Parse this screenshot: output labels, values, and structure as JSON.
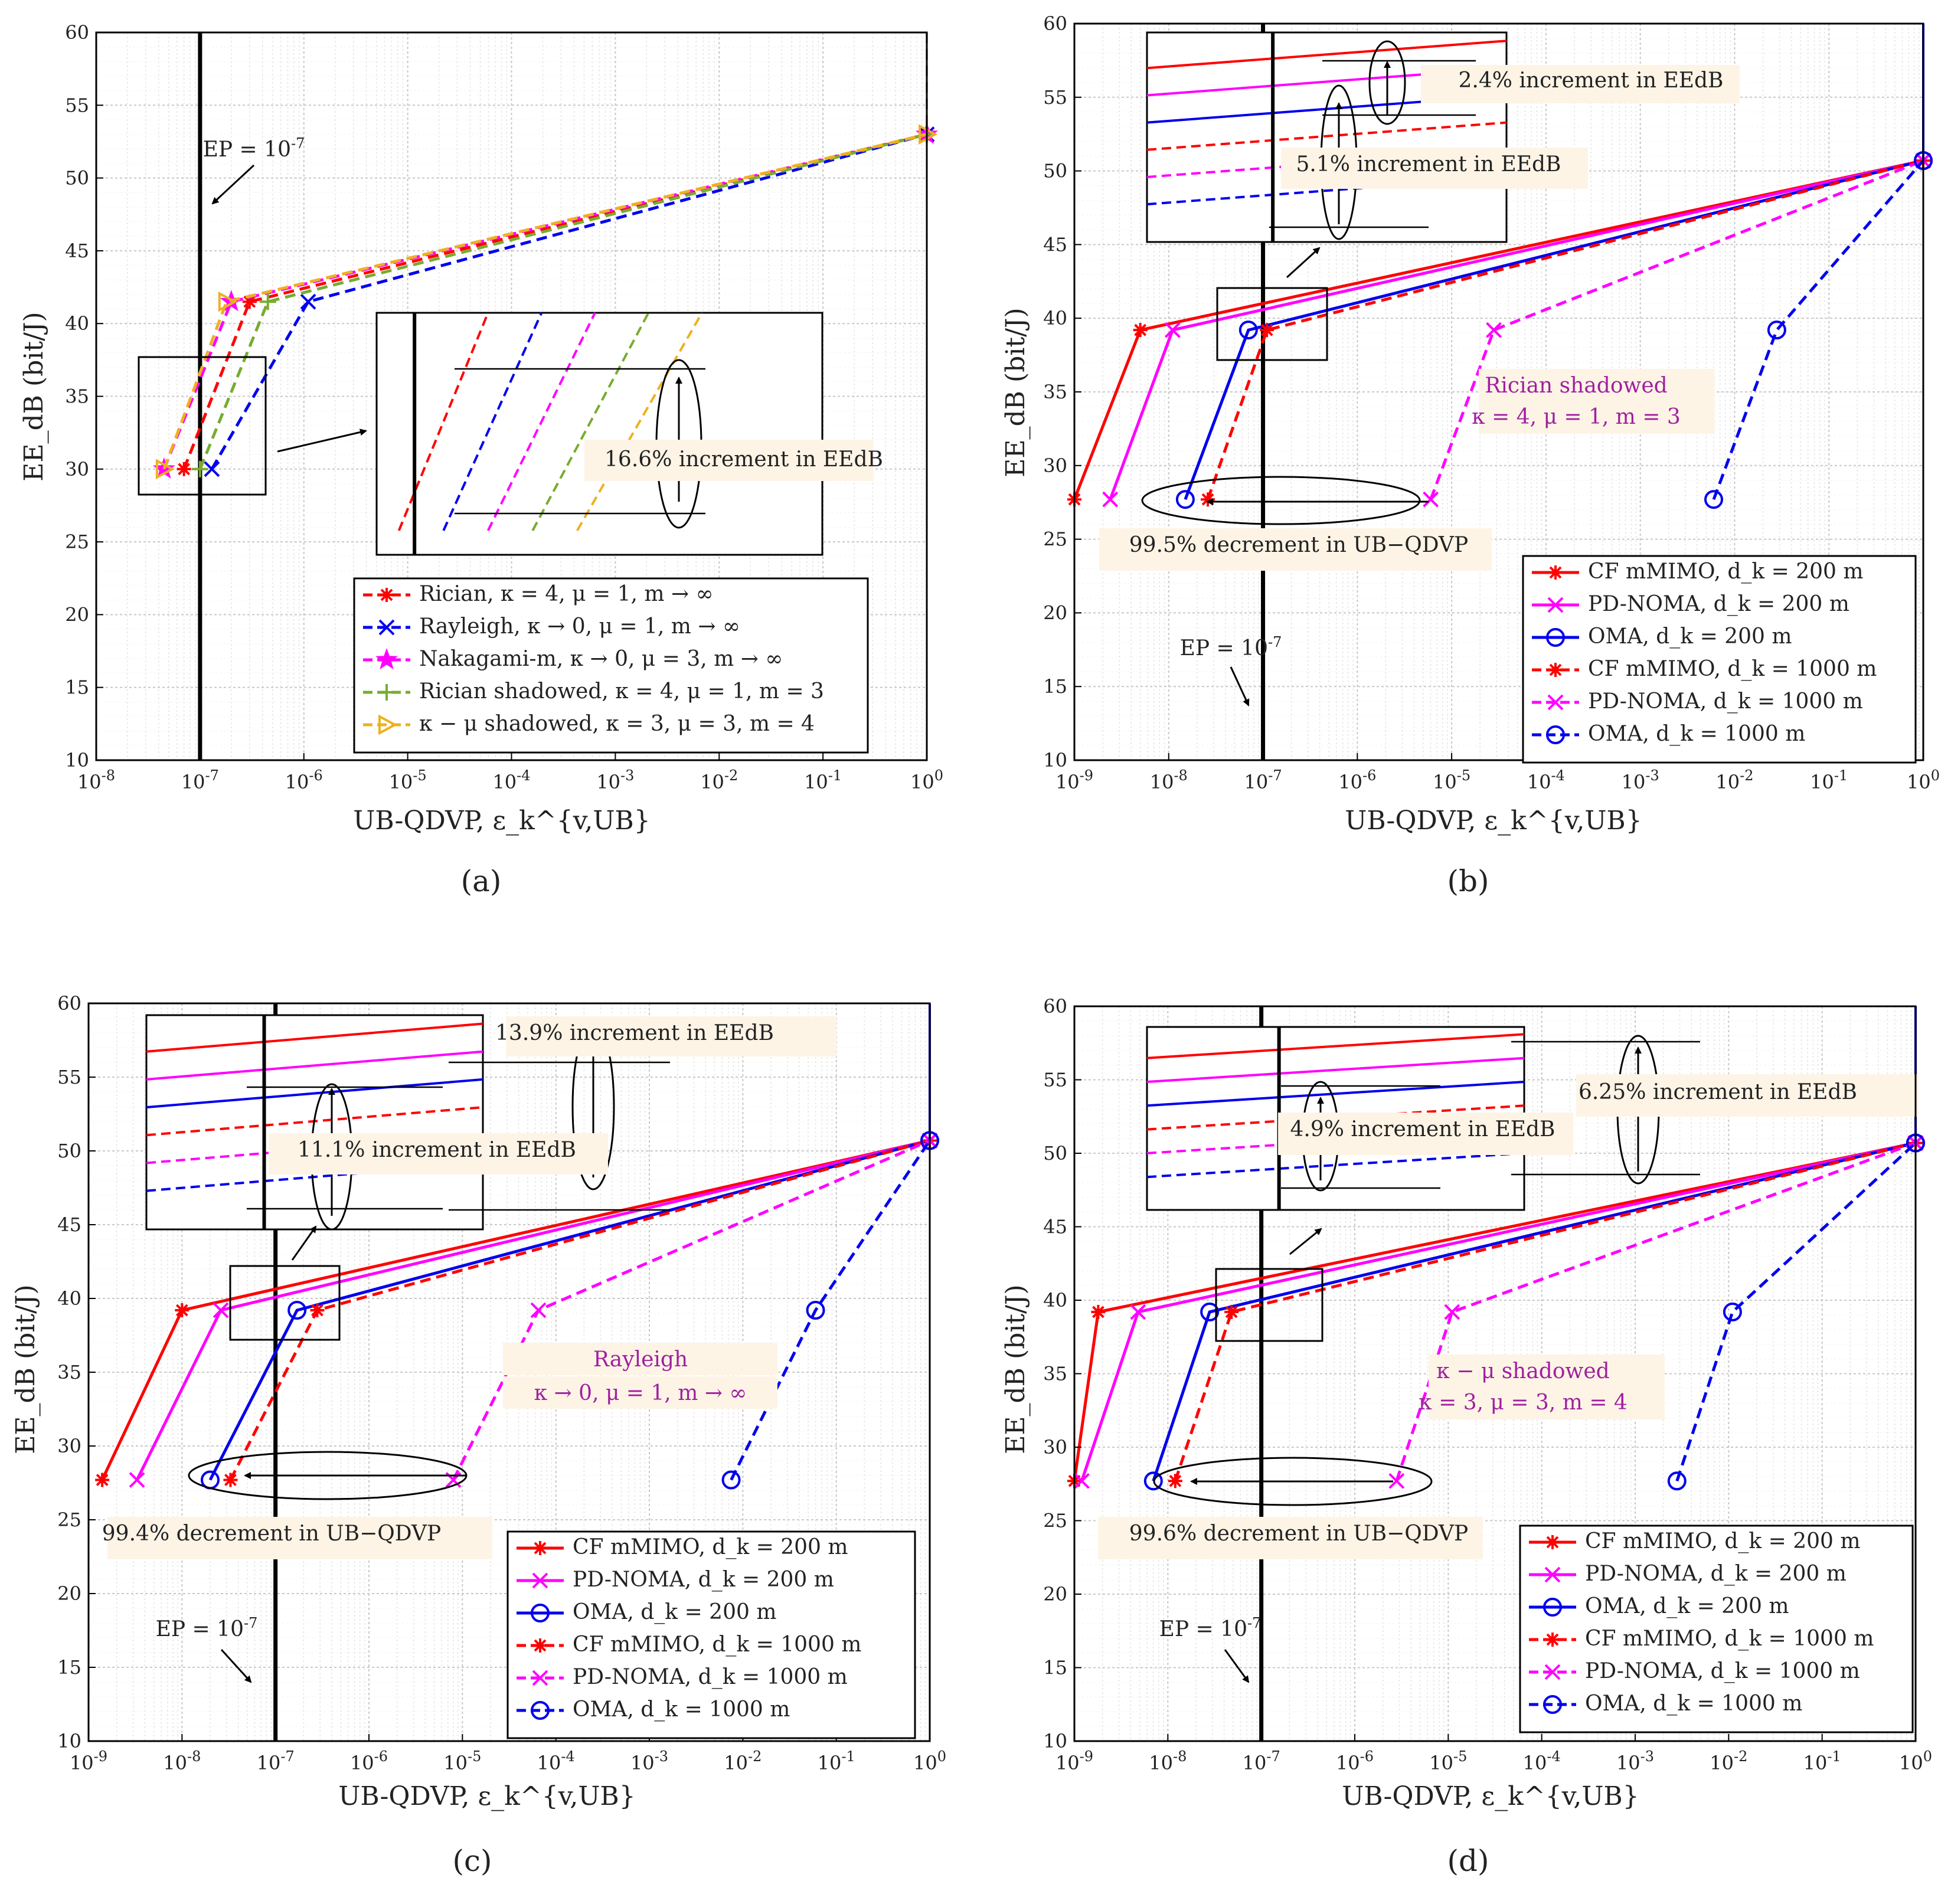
{
  "figure": {
    "captions": [
      "(a)",
      "(b)",
      "(c)",
      "(d)"
    ]
  },
  "colors": {
    "red": "#ff0000",
    "blue": "#0000ee",
    "magenta": "#ff00ff",
    "green": "#77ac30",
    "gold": "#edb120",
    "annotation_text": "#a020a0",
    "annotation_bg": "#fdf4e6"
  },
  "chart_data": [
    {
      "panel": "a",
      "type": "line",
      "xscale": "log",
      "xlim": [
        1e-08,
        1
      ],
      "ylim": [
        10,
        60
      ],
      "yticks": [
        10,
        15,
        20,
        25,
        30,
        35,
        40,
        45,
        50,
        55,
        60
      ],
      "xticks": [
        "10^-8",
        "10^-7",
        "10^-6",
        "10^-5",
        "10^-4",
        "10^-3",
        "10^-2",
        "10^-1",
        "10^0"
      ],
      "xlabel": "UB-QDVP, ε_k^{v,UB}",
      "ylabel": "EE_dB (bit/J)",
      "threshold": {
        "x": 1e-07,
        "label": "EP = 10^-7"
      },
      "series": [
        {
          "name": "Rician, κ = 4, μ = 1, m → ∞",
          "color": "red",
          "dash": true,
          "marker": "asterisk",
          "x": [
            7e-08,
            3e-07,
            1
          ],
          "y": [
            30,
            41.5,
            53
          ]
        },
        {
          "name": "Rayleigh, κ → 0, μ = 1, m → ∞",
          "color": "blue",
          "dash": true,
          "marker": "x",
          "x": [
            1.3e-07,
            1.1e-06,
            1
          ],
          "y": [
            30,
            41.5,
            53
          ]
        },
        {
          "name": "Nakagami-m, κ → 0, μ = 3, m → ∞",
          "color": "magenta",
          "dash": true,
          "marker": "star",
          "x": [
            4.5e-08,
            2e-07,
            1
          ],
          "y": [
            30,
            41.5,
            53
          ]
        },
        {
          "name": "Rician shadowed, κ = 4, μ = 1, m = 3",
          "color": "green",
          "dash": true,
          "marker": "plus",
          "x": [
            1e-07,
            4.5e-07,
            1
          ],
          "y": [
            30,
            41.5,
            53
          ]
        },
        {
          "name": "κ − μ shadowed, κ = 3, μ = 3, m = 4",
          "color": "gold",
          "dash": true,
          "marker": "triangle",
          "x": [
            4.5e-08,
            1.8e-07,
            1
          ],
          "y": [
            30,
            41.5,
            53
          ]
        }
      ],
      "annotations": [
        "16.6% increment in EE_dB"
      ]
    },
    {
      "panel": "b",
      "type": "line",
      "xscale": "log",
      "xlim": [
        1e-09,
        1
      ],
      "ylim": [
        10,
        60
      ],
      "yticks": [
        10,
        15,
        20,
        25,
        30,
        35,
        40,
        45,
        50,
        55,
        60
      ],
      "xticks": [
        "10^-9",
        "10^-8",
        "10^-7",
        "10^-6",
        "10^-5",
        "10^-4",
        "10^-3",
        "10^-2",
        "10^-1",
        "10^0"
      ],
      "xlabel": "UB-QDVP, ε_k^{v,UB}",
      "ylabel": "EE_dB (bit/J)",
      "threshold": {
        "x": 1e-07,
        "label": "EP = 10^-7"
      },
      "series": [
        {
          "name": "CF mMIMO, d_k = 200 m",
          "color": "red",
          "dash": false,
          "marker": "asterisk",
          "x": [
            1e-09,
            5e-09,
            1
          ],
          "y": [
            27.7,
            39.2,
            50.7
          ]
        },
        {
          "name": "PD-NOMA, d_k = 200 m",
          "color": "magenta",
          "dash": false,
          "marker": "x",
          "x": [
            2.4e-09,
            1.1e-08,
            1
          ],
          "y": [
            27.7,
            39.2,
            50.7
          ]
        },
        {
          "name": "OMA, d_k = 200 m",
          "color": "blue",
          "dash": false,
          "marker": "circle",
          "x": [
            1.5e-08,
            7e-08,
            1
          ],
          "y": [
            27.7,
            39.2,
            50.7
          ]
        },
        {
          "name": "CF mMIMO, d_k = 1000 m",
          "color": "red",
          "dash": true,
          "marker": "asterisk",
          "x": [
            2.6e-08,
            1.1e-07,
            1
          ],
          "y": [
            27.7,
            39.2,
            50.7
          ]
        },
        {
          "name": "PD-NOMA, d_k = 1000 m",
          "color": "magenta",
          "dash": true,
          "marker": "x",
          "x": [
            6e-06,
            2.8e-05,
            1
          ],
          "y": [
            27.7,
            39.2,
            50.7
          ]
        },
        {
          "name": "OMA, d_k = 1000 m",
          "color": "blue",
          "dash": true,
          "marker": "circle",
          "x": [
            0.006,
            0.028,
            1
          ],
          "y": [
            27.7,
            39.2,
            50.7
          ]
        }
      ],
      "annotations": [
        "2.4% increment in EE_dB",
        "5.1% increment in EE_dB",
        "99.5% decrement in UB−QDVP",
        "Rician shadowed",
        "κ = 4, μ = 1, m = 3"
      ]
    },
    {
      "panel": "c",
      "type": "line",
      "xscale": "log",
      "xlim": [
        1e-09,
        1
      ],
      "ylim": [
        10,
        60
      ],
      "yticks": [
        10,
        15,
        20,
        25,
        30,
        35,
        40,
        45,
        50,
        55,
        60
      ],
      "xticks": [
        "10^-9",
        "10^-8",
        "10^-7",
        "10^-6",
        "10^-5",
        "10^-4",
        "10^-3",
        "10^-2",
        "10^-1",
        "10^0"
      ],
      "xlabel": "UB-QDVP, ε_k^{v,UB}",
      "ylabel": "EE_dB (bit/J)",
      "threshold": {
        "x": 1e-07,
        "label": "EP = 10^-7"
      },
      "series": [
        {
          "name": "CF mMIMO, d_k = 200 m",
          "color": "red",
          "dash": false,
          "marker": "asterisk",
          "x": [
            1.4e-09,
            1e-08,
            1
          ],
          "y": [
            27.7,
            39.2,
            50.7
          ]
        },
        {
          "name": "PD-NOMA, d_k = 200 m",
          "color": "magenta",
          "dash": false,
          "marker": "x",
          "x": [
            3.3e-09,
            2.6e-08,
            1
          ],
          "y": [
            27.7,
            39.2,
            50.7
          ]
        },
        {
          "name": "OMA, d_k = 200 m",
          "color": "blue",
          "dash": false,
          "marker": "circle",
          "x": [
            2e-08,
            1.7e-07,
            1
          ],
          "y": [
            27.7,
            39.2,
            50.7
          ]
        },
        {
          "name": "CF mMIMO, d_k = 1000 m",
          "color": "red",
          "dash": true,
          "marker": "asterisk",
          "x": [
            3.3e-08,
            2.8e-07,
            1
          ],
          "y": [
            27.7,
            39.2,
            50.7
          ]
        },
        {
          "name": "PD-NOMA, d_k = 1000 m",
          "color": "magenta",
          "dash": true,
          "marker": "x",
          "x": [
            8e-06,
            6.5e-05,
            1
          ],
          "y": [
            27.7,
            39.2,
            50.7
          ]
        },
        {
          "name": "OMA, d_k = 1000 m",
          "color": "blue",
          "dash": true,
          "marker": "circle",
          "x": [
            0.0075,
            0.06,
            1
          ],
          "y": [
            27.7,
            39.2,
            50.7
          ]
        }
      ],
      "annotations": [
        "13.9% increment in EE_dB",
        "11.1% increment in EE_dB",
        "99.4% decrement in UB−QDVP",
        "Rayleigh",
        "κ → 0, μ = 1, m → ∞"
      ]
    },
    {
      "panel": "d",
      "type": "line",
      "xscale": "log",
      "xlim": [
        1e-09,
        1
      ],
      "ylim": [
        10,
        60
      ],
      "yticks": [
        10,
        15,
        20,
        25,
        30,
        35,
        40,
        45,
        50,
        55,
        60
      ],
      "xticks": [
        "10^-9",
        "10^-8",
        "10^-7",
        "10^-6",
        "10^-5",
        "10^-4",
        "10^-3",
        "10^-2",
        "10^-1",
        "10^0"
      ],
      "xlabel": "UB-QDVP, ε_k^{v,UB}",
      "ylabel": "EE_dB (bit/J)",
      "threshold": {
        "x": 1e-07,
        "label": "EP = 10^-7"
      },
      "series": [
        {
          "name": "CF mMIMO, d_k = 200 m",
          "color": "red",
          "dash": false,
          "marker": "asterisk",
          "x": [
            1e-09,
            1.8e-09,
            1
          ],
          "y": [
            27.7,
            39.2,
            50.7
          ]
        },
        {
          "name": "PD-NOMA, d_k = 200 m",
          "color": "magenta",
          "dash": false,
          "marker": "x",
          "x": [
            1.2e-09,
            4.8e-09,
            1
          ],
          "y": [
            27.7,
            39.2,
            50.7
          ]
        },
        {
          "name": "OMA, d_k = 200 m",
          "color": "blue",
          "dash": false,
          "marker": "circle",
          "x": [
            7e-09,
            2.8e-08,
            1
          ],
          "y": [
            27.7,
            39.2,
            50.7
          ]
        },
        {
          "name": "CF mMIMO, d_k = 1000 m",
          "color": "red",
          "dash": true,
          "marker": "asterisk",
          "x": [
            1.2e-08,
            4.8e-08,
            1
          ],
          "y": [
            27.7,
            39.2,
            50.7
          ]
        },
        {
          "name": "PD-NOMA, d_k = 1000 m",
          "color": "magenta",
          "dash": true,
          "marker": "x",
          "x": [
            2.8e-06,
            1.1e-05,
            1
          ],
          "y": [
            27.7,
            39.2,
            50.7
          ]
        },
        {
          "name": "OMA, d_k = 1000 m",
          "color": "blue",
          "dash": true,
          "marker": "circle",
          "x": [
            0.0028,
            0.011,
            1
          ],
          "y": [
            27.7,
            39.2,
            50.7
          ]
        }
      ],
      "annotations": [
        "4.9% increment in EE_dB",
        "6.25% increment in EE_dB",
        "99.6% decrement in UB−QDVP",
        "κ − μ shadowed",
        "κ = 3, μ = 3, m = 4"
      ]
    }
  ]
}
